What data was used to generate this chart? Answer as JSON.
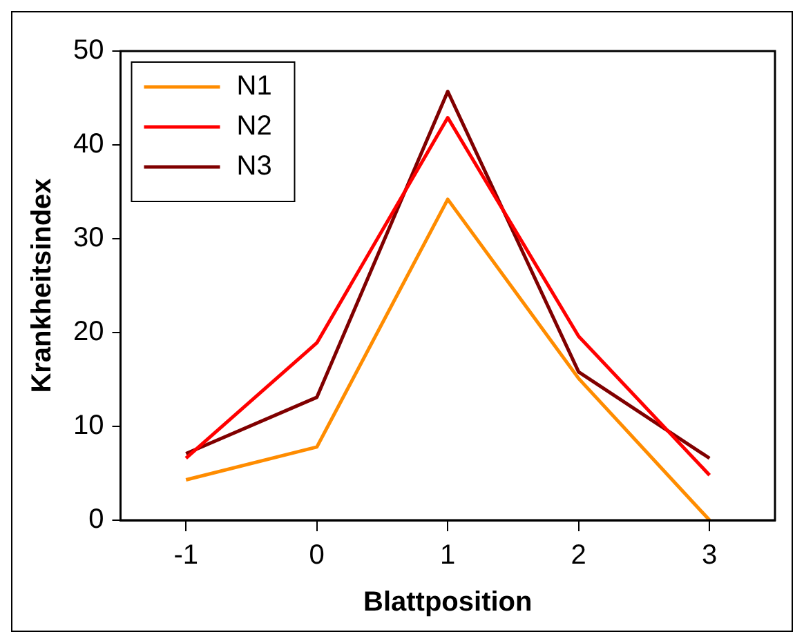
{
  "chart_data": {
    "type": "line",
    "xlabel": "Blattposition",
    "ylabel": "Krankheitsindex",
    "categories": [
      "-1",
      "0",
      "1",
      "2",
      "3"
    ],
    "series": [
      {
        "name": "N1",
        "color": "#ff8c00",
        "values": [
          4.3,
          7.8,
          34.2,
          15.1,
          0
        ]
      },
      {
        "name": "N2",
        "color": "#ff0000",
        "values": [
          6.6,
          18.9,
          42.9,
          19.6,
          4.8
        ]
      },
      {
        "name": "N3",
        "color": "#800000",
        "values": [
          7.1,
          13.1,
          45.7,
          15.8,
          6.6
        ]
      }
    ],
    "ylim": [
      0,
      50
    ],
    "yticks": [
      0,
      10,
      20,
      30,
      40,
      50
    ],
    "legend": "top left"
  }
}
